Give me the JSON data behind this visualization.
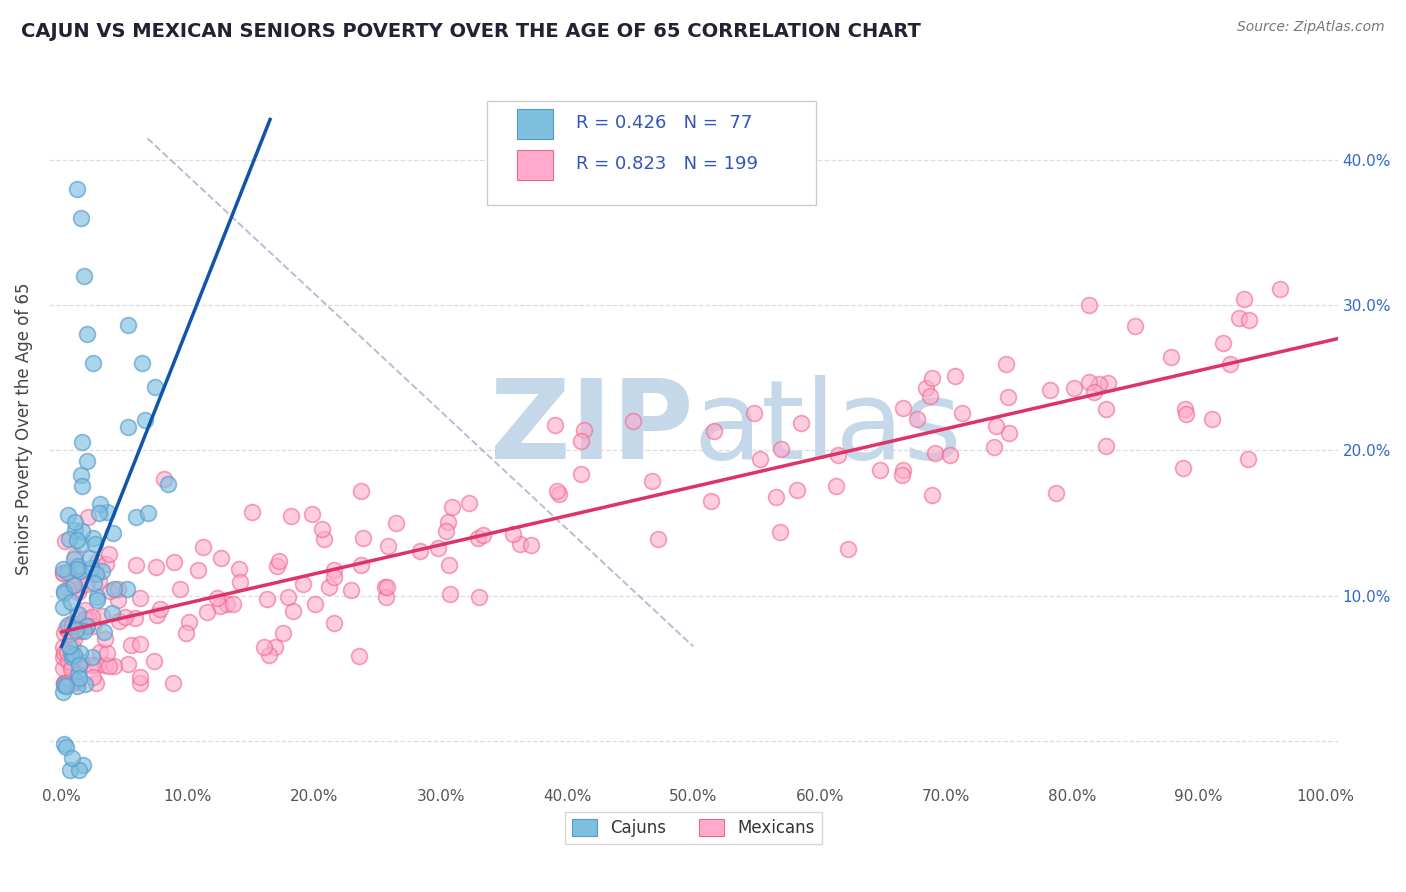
{
  "title": "CAJUN VS MEXICAN SENIORS POVERTY OVER THE AGE OF 65 CORRELATION CHART",
  "source_text": "Source: ZipAtlas.com",
  "ylabel": "Seniors Poverty Over the Age of 65",
  "xlabel": "",
  "xlim": [
    -0.01,
    1.01
  ],
  "ylim": [
    -0.03,
    0.46
  ],
  "xtick_vals": [
    0.0,
    0.1,
    0.2,
    0.3,
    0.4,
    0.5,
    0.6,
    0.7,
    0.8,
    0.9,
    1.0
  ],
  "xticklabels": [
    "0.0%",
    "10.0%",
    "20.0%",
    "30.0%",
    "40.0%",
    "50.0%",
    "60.0%",
    "70.0%",
    "80.0%",
    "90.0%",
    "100.0%"
  ],
  "ytick_vals": [
    0.0,
    0.1,
    0.2,
    0.3,
    0.4
  ],
  "ytick_labels_left": [
    "",
    "",
    "",
    "",
    ""
  ],
  "ytick_labels_right": [
    "",
    "10.0%",
    "20.0%",
    "30.0%",
    "40.0%"
  ],
  "cajun_color": "#7fbfdf",
  "cajun_edge_color": "#5599cc",
  "mexican_color": "#ffaacc",
  "mexican_edge_color": "#ee6688",
  "cajun_line_color": "#1155aa",
  "mexican_line_color": "#dd3366",
  "right_tick_color": "#3366cc",
  "R_cajun": 0.426,
  "N_cajun": 77,
  "R_mexican": 0.823,
  "N_mexican": 199,
  "legend_label_cajun": "Cajuns",
  "legend_label_mexican": "Mexicans",
  "watermark_zip": "ZIP",
  "watermark_atlas": "atlas",
  "watermark_color": "#c5d8ea",
  "background_color": "#ffffff",
  "grid_color": "#dddddd",
  "title_color": "#222233",
  "cajun_slope": 2.2,
  "cajun_intercept": 0.065,
  "mexican_slope": 0.2,
  "mexican_intercept": 0.075,
  "legend_r_color": "#3355bb",
  "legend_n_color": "#3355bb"
}
